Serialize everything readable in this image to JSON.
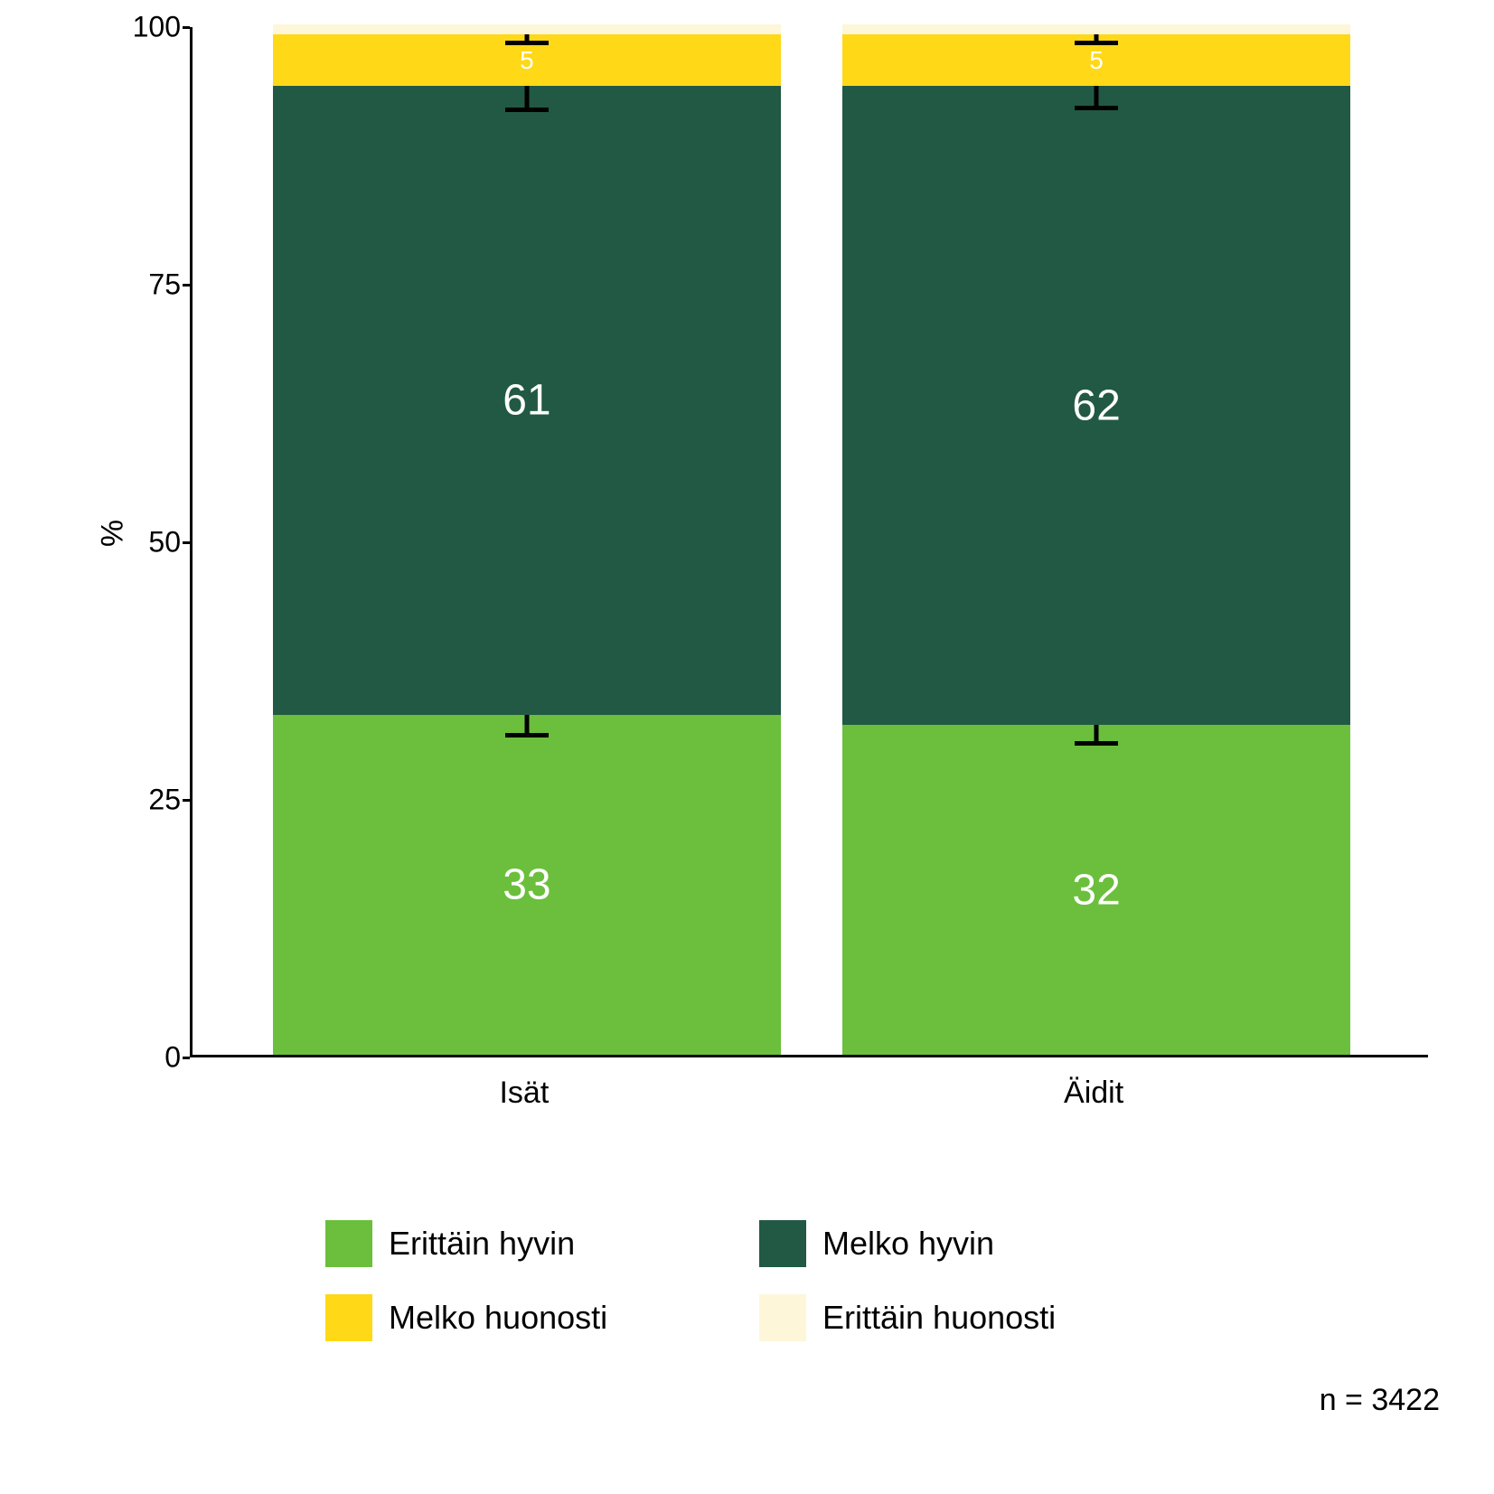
{
  "chart": {
    "type": "stacked-bar",
    "y_axis": {
      "label": "%",
      "min": 0,
      "max": 100,
      "ticks": [
        0,
        25,
        50,
        75,
        100
      ],
      "label_fontsize": 34,
      "tick_fontsize": 32
    },
    "x_axis": {
      "categories": [
        "Isät",
        "Äidit"
      ],
      "tick_fontsize": 34
    },
    "colors": {
      "erittain_hyvin": "#6bbf3c",
      "melko_hyvin": "#225944",
      "melko_huonosti": "#ffd817",
      "erittain_huonosti": "#fdf6d8",
      "axis": "#000000",
      "background": "#ffffff",
      "bar_label": "#ffffff",
      "error_bar": "#000000"
    },
    "series": [
      {
        "key": "erittain_hyvin",
        "label": "Erittäin hyvin",
        "values": [
          33,
          32
        ],
        "show_label": [
          true,
          true
        ],
        "error": [
          2.2,
          2.0
        ]
      },
      {
        "key": "melko_hyvin",
        "label": "Melko hyvin",
        "values": [
          61,
          62
        ],
        "show_label": [
          true,
          true
        ],
        "error": [
          2.5,
          2.3
        ]
      },
      {
        "key": "melko_huonosti",
        "label": "Melko huonosti",
        "values": [
          5,
          5
        ],
        "show_label": [
          true,
          true
        ],
        "label_text": [
          "5",
          "5"
        ],
        "error": [
          1.0,
          1.0
        ]
      },
      {
        "key": "erittain_huonosti",
        "label": "Erittäin huonosti",
        "values": [
          1,
          1
        ],
        "show_label": [
          false,
          false
        ],
        "error": [
          0,
          0
        ]
      }
    ],
    "bar_label_fontsize": 48,
    "bar_width_rel": 0.41,
    "bar_gap_rel": 0.05,
    "error_cap_width": 48
  },
  "legend": {
    "items": [
      {
        "key": "erittain_hyvin",
        "label": "Erittäin hyvin"
      },
      {
        "key": "melko_hyvin",
        "label": "Melko hyvin"
      },
      {
        "key": "melko_huonosti",
        "label": "Melko huonosti"
      },
      {
        "key": "erittain_huonosti",
        "label": "Erittäin huonosti"
      }
    ],
    "swatch_size": 52,
    "label_fontsize": 36
  },
  "footnote": {
    "text": "n = 3422",
    "fontsize": 34
  }
}
